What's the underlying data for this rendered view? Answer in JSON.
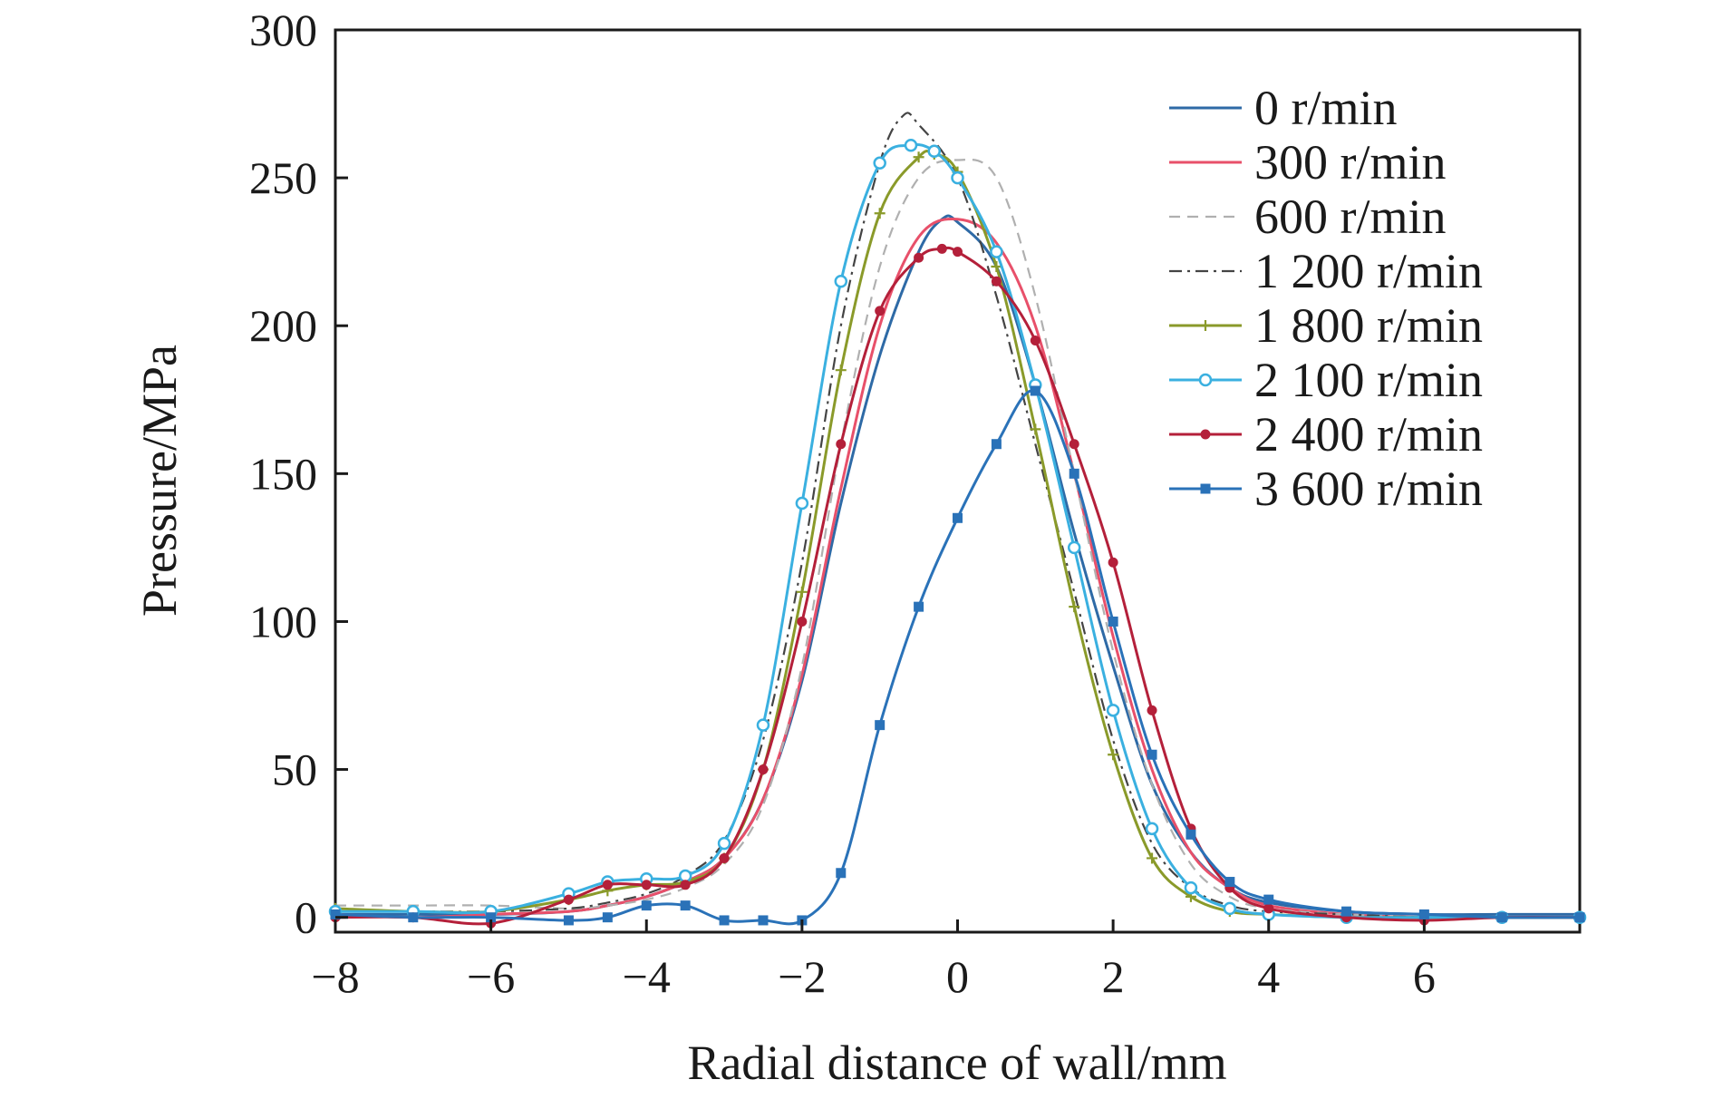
{
  "chart_data": {
    "type": "line",
    "title": "",
    "xlabel": "Radial distance of wall/mm",
    "ylabel": "Pressure/MPa",
    "xlim": [
      -8,
      8
    ],
    "ylim": [
      -5,
      300
    ],
    "xticks": [
      -8,
      -6,
      -4,
      -2,
      0,
      2,
      4,
      6
    ],
    "xtick_labels": [
      "−8",
      "−6",
      "−4",
      "−2",
      "0",
      "2",
      "4",
      "6"
    ],
    "yticks": [
      0,
      50,
      100,
      150,
      200,
      250,
      300
    ],
    "ytick_labels": [
      "0",
      "50",
      "100",
      "150",
      "200",
      "250",
      "300"
    ],
    "grid": false,
    "legend_position": "top-right",
    "series": [
      {
        "name": "0 r/min",
        "color": "#2e6aa6",
        "style": "solid",
        "marker": "none",
        "x": [
          -8,
          -7,
          -6,
          -5,
          -4.5,
          -4,
          -3.5,
          -3,
          -2.5,
          -2,
          -1.5,
          -1,
          -0.5,
          -0.2,
          0,
          0.5,
          1,
          1.5,
          2,
          2.5,
          3,
          3.5,
          4,
          5,
          6,
          7,
          8
        ],
        "y": [
          1,
          1,
          1,
          2,
          4,
          7,
          12,
          20,
          40,
          80,
          140,
          190,
          225,
          236,
          235,
          220,
          180,
          130,
          85,
          45,
          22,
          10,
          5,
          2,
          1,
          1,
          1
        ]
      },
      {
        "name": "300 r/min",
        "color": "#e8506a",
        "style": "solid",
        "marker": "none",
        "x": [
          -8,
          -7,
          -6,
          -5,
          -4.5,
          -4,
          -3.5,
          -3,
          -2.5,
          -2,
          -1.5,
          -1,
          -0.5,
          0,
          0.5,
          1,
          1.5,
          2,
          2.5,
          3,
          3.5,
          4,
          5,
          6,
          7,
          8
        ],
        "y": [
          1,
          0,
          1,
          2,
          4,
          7,
          12,
          20,
          40,
          82,
          145,
          200,
          230,
          236,
          228,
          200,
          150,
          95,
          50,
          22,
          10,
          4,
          1,
          0,
          0,
          0
        ]
      },
      {
        "name": "600 r/min",
        "color": "#b0b0b0",
        "style": "dashed",
        "marker": "none",
        "x": [
          -8,
          -7,
          -6,
          -5,
          -4.5,
          -4,
          -3.5,
          -3,
          -2.5,
          -2,
          -1.5,
          -1,
          -0.5,
          0,
          0.5,
          1,
          1.5,
          2,
          2.5,
          3,
          3.5,
          4,
          5,
          6,
          7,
          8
        ],
        "y": [
          4,
          4,
          4,
          3,
          4,
          6,
          10,
          18,
          38,
          85,
          160,
          220,
          250,
          256,
          250,
          210,
          150,
          90,
          45,
          18,
          7,
          3,
          1,
          0,
          0,
          0
        ]
      },
      {
        "name": "1 200 r/min",
        "color": "#444444",
        "style": "dashdot",
        "marker": "none",
        "x": [
          -8,
          -7,
          -6,
          -5,
          -4.5,
          -4,
          -3.5,
          -3,
          -2.5,
          -2,
          -1.5,
          -1,
          -0.7,
          -0.5,
          0,
          0.5,
          1,
          1.5,
          2,
          2.5,
          3,
          3.5,
          4,
          5,
          6,
          7,
          8
        ],
        "y": [
          2,
          2,
          2,
          3,
          5,
          8,
          14,
          26,
          60,
          120,
          200,
          255,
          271,
          268,
          250,
          210,
          160,
          110,
          60,
          25,
          10,
          4,
          2,
          1,
          0,
          0,
          0
        ]
      },
      {
        "name": "1 800 r/min",
        "color": "#8a9a2a",
        "style": "solid",
        "marker": "plus",
        "x": [
          -8,
          -7,
          -6,
          -5,
          -4.5,
          -4,
          -3.5,
          -3,
          -2.5,
          -2,
          -1.5,
          -1,
          -0.5,
          -0.3,
          0,
          0.5,
          1,
          1.5,
          2,
          2.5,
          3,
          3.5,
          4,
          5,
          6,
          7,
          8
        ],
        "y": [
          3,
          2,
          2,
          6,
          9,
          11,
          12,
          20,
          50,
          110,
          185,
          238,
          257,
          258,
          252,
          220,
          165,
          105,
          55,
          20,
          7,
          2,
          1,
          0,
          0,
          0,
          0
        ]
      },
      {
        "name": "2 100 r/min",
        "color": "#3ab0e0",
        "style": "solid",
        "marker": "circle",
        "x": [
          -8,
          -7,
          -6,
          -5,
          -4.5,
          -4,
          -3.5,
          -3,
          -2.5,
          -2,
          -1.5,
          -1,
          -0.6,
          -0.3,
          0,
          0.5,
          1,
          1.5,
          2,
          2.5,
          3,
          3.5,
          4,
          5,
          6,
          7,
          8
        ],
        "y": [
          2,
          2,
          2,
          8,
          12,
          13,
          14,
          25,
          65,
          140,
          215,
          255,
          261,
          259,
          250,
          225,
          180,
          125,
          70,
          30,
          10,
          3,
          1,
          0,
          0,
          0,
          0
        ]
      },
      {
        "name": "2 400 r/min",
        "color": "#b4203a",
        "style": "solid",
        "marker": "dot",
        "x": [
          -8,
          -7,
          -6,
          -5,
          -4.5,
          -4,
          -3.5,
          -3,
          -2.5,
          -2,
          -1.5,
          -1,
          -0.5,
          -0.2,
          0,
          0.5,
          1,
          1.5,
          2,
          2.5,
          3,
          3.5,
          4,
          5,
          6,
          7,
          8
        ],
        "y": [
          0,
          0,
          -2,
          6,
          11,
          11,
          11,
          20,
          50,
          100,
          160,
          205,
          223,
          226,
          225,
          215,
          195,
          160,
          120,
          70,
          30,
          10,
          3,
          0,
          -1,
          0,
          0
        ]
      },
      {
        "name": "3 600 r/min",
        "color": "#2a72b8",
        "style": "solid",
        "marker": "square",
        "x": [
          -8,
          -7,
          -6,
          -5,
          -4.5,
          -4,
          -3.5,
          -3,
          -2.5,
          -2,
          -1.5,
          -1,
          -0.5,
          0,
          0.5,
          1,
          1.5,
          2,
          2.5,
          3,
          3.5,
          4,
          5,
          6,
          7,
          8
        ],
        "y": [
          1,
          0,
          0,
          -1,
          0,
          4,
          4,
          -1,
          -1,
          -1,
          15,
          65,
          105,
          135,
          160,
          178,
          150,
          100,
          55,
          28,
          12,
          6,
          2,
          1,
          0,
          0
        ]
      }
    ]
  }
}
